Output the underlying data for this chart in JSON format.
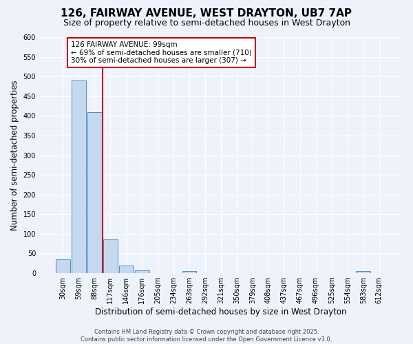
{
  "title": "126, FAIRWAY AVENUE, WEST DRAYTON, UB7 7AP",
  "subtitle": "Size of property relative to semi-detached houses in West Drayton",
  "xlabel": "Distribution of semi-detached houses by size in West Drayton",
  "ylabel": "Number of semi-detached properties",
  "footnote": "Contains HM Land Registry data © Crown copyright and database right 2025.\nContains public sector information licensed under the Open Government Licence v3.0.",
  "bin_labels": [
    "30sqm",
    "59sqm",
    "88sqm",
    "117sqm",
    "146sqm",
    "176sqm",
    "205sqm",
    "234sqm",
    "263sqm",
    "292sqm",
    "321sqm",
    "350sqm",
    "379sqm",
    "408sqm",
    "437sqm",
    "467sqm",
    "496sqm",
    "525sqm",
    "554sqm",
    "583sqm",
    "612sqm"
  ],
  "bar_values": [
    35,
    490,
    410,
    85,
    20,
    7,
    0,
    0,
    6,
    0,
    0,
    0,
    0,
    0,
    0,
    0,
    0,
    0,
    0,
    6,
    0
  ],
  "bar_color": "#c5d8ed",
  "bar_edge_color": "#4a90c4",
  "red_line_x": 2.5,
  "annotation_text": "126 FAIRWAY AVENUE: 99sqm\n← 69% of semi-detached houses are smaller (710)\n30% of semi-detached houses are larger (307) →",
  "annotation_box_color": "#ffffff",
  "annotation_box_edge": "#cc0000",
  "annotation_text_color": "#000000",
  "red_line_color": "#cc0000",
  "background_color": "#eef2fb",
  "ylim": [
    0,
    600
  ],
  "yticks": [
    0,
    50,
    100,
    150,
    200,
    250,
    300,
    350,
    400,
    450,
    500,
    550,
    600
  ],
  "title_fontsize": 11,
  "subtitle_fontsize": 9,
  "label_fontsize": 8.5,
  "tick_fontsize": 7,
  "annot_fontsize": 7.5
}
